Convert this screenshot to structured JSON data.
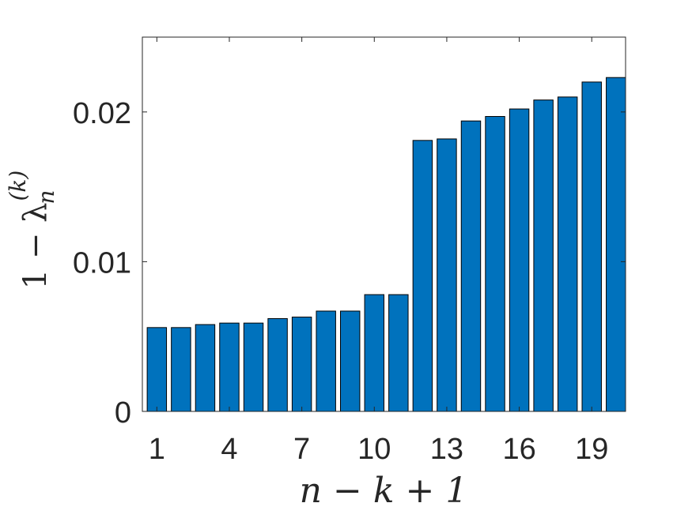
{
  "chart_data": {
    "type": "bar",
    "title": "",
    "xlabel": "n − k + 1",
    "ylabel": "1 − λ",
    "ylabel_super": "(k)",
    "ylabel_sub": "n",
    "x": [
      1,
      2,
      3,
      4,
      5,
      6,
      7,
      8,
      9,
      10,
      11,
      12,
      13,
      14,
      15,
      16,
      17,
      18,
      19,
      20
    ],
    "values": [
      0.0056,
      0.0056,
      0.0058,
      0.0059,
      0.0059,
      0.0062,
      0.0063,
      0.0067,
      0.0067,
      0.0078,
      0.0078,
      0.0181,
      0.0182,
      0.0194,
      0.0197,
      0.0202,
      0.0208,
      0.021,
      0.022,
      0.0223
    ],
    "xticks": [
      1,
      4,
      7,
      10,
      13,
      16,
      19
    ],
    "yticks": [
      "0",
      "0.01",
      "0.02"
    ],
    "ylim": [
      0,
      0.025
    ],
    "xlim": [
      0.4,
      20.4
    ],
    "grid": false,
    "bar_color": "#0072BD",
    "edge_color": "#000000"
  }
}
